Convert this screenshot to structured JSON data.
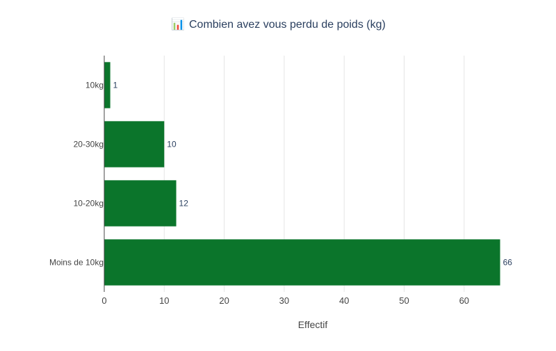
{
  "chart_data": {
    "type": "bar",
    "orientation": "horizontal",
    "title": "Combien avez vous perdu de poids (kg)",
    "title_icon": "📊",
    "categories": [
      "10kg",
      "20-30kg",
      "10-20kg",
      "Moins de 10kg"
    ],
    "values": [
      1,
      10,
      12,
      66
    ],
    "data_labels": [
      "1",
      "10",
      "12",
      "66"
    ],
    "xlabel": "Effectif",
    "ylabel": "",
    "xlim": [
      0,
      70
    ],
    "x_ticks": [
      0,
      10,
      20,
      30,
      40,
      50,
      60
    ],
    "grid": true,
    "legend": "none",
    "bar_color": "#0b752b"
  }
}
